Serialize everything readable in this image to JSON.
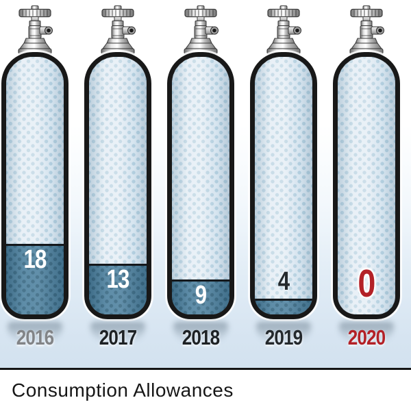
{
  "title": "Consumption Allowances",
  "chart_data": {
    "type": "bar",
    "subtype": "pictogram-cylinders",
    "categories": [
      "2016",
      "2017",
      "2018",
      "2019",
      "2020"
    ],
    "values": [
      18,
      13,
      9,
      4,
      0
    ],
    "title": "Consumption Allowances",
    "xlabel": "",
    "ylabel": "",
    "legend": "none",
    "grid": false
  },
  "colors": {
    "fill": "#4c809e",
    "zero_accent": "#b32127",
    "past_year_gray": "#828487",
    "year_black": "#1d2124",
    "value_white": "#ffffff"
  },
  "cylinders": [
    {
      "year": "2016",
      "value": "18",
      "year_color": "#828487",
      "value_color": "#ffffff",
      "zero": false
    },
    {
      "year": "2017",
      "value": "13",
      "year_color": "#1d2124",
      "value_color": "#ffffff",
      "zero": false
    },
    {
      "year": "2018",
      "value": "9",
      "year_color": "#1d2124",
      "value_color": "#ffffff",
      "zero": false
    },
    {
      "year": "2019",
      "value": "4",
      "year_color": "#24292d",
      "value_color": "#24292d",
      "zero": false
    },
    {
      "year": "2020",
      "value": "0",
      "year_color": "#b32127",
      "value_color": "#b32127",
      "zero": true
    }
  ]
}
